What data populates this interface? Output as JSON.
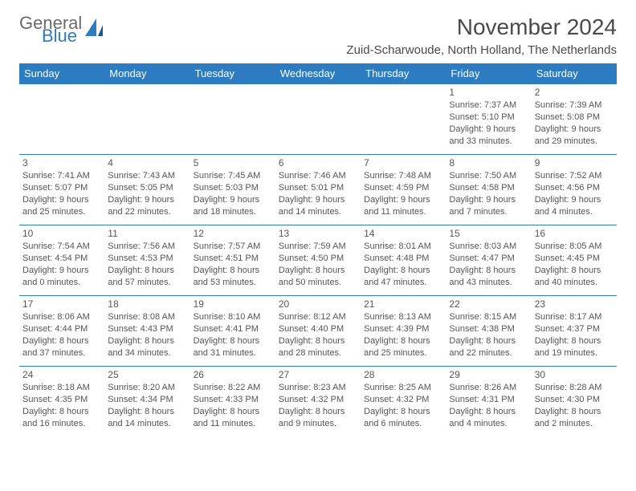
{
  "logo": {
    "word1": "General",
    "word2": "Blue"
  },
  "title": "November 2024",
  "location": "Zuid-Scharwoude, North Holland, The Netherlands",
  "colors": {
    "header_bg": "#2d7bc0",
    "header_text": "#ffffff",
    "border": "#2d7bc0",
    "body_text": "#555555",
    "title_text": "#4a4a4a",
    "logo_gray": "#6a6a6a",
    "logo_blue": "#2d7bc0",
    "background": "#ffffff"
  },
  "day_headers": [
    "Sunday",
    "Monday",
    "Tuesday",
    "Wednesday",
    "Thursday",
    "Friday",
    "Saturday"
  ],
  "weeks": [
    [
      null,
      null,
      null,
      null,
      null,
      {
        "n": "1",
        "sr": "Sunrise: 7:37 AM",
        "ss": "Sunset: 5:10 PM",
        "d1": "Daylight: 9 hours",
        "d2": "and 33 minutes."
      },
      {
        "n": "2",
        "sr": "Sunrise: 7:39 AM",
        "ss": "Sunset: 5:08 PM",
        "d1": "Daylight: 9 hours",
        "d2": "and 29 minutes."
      }
    ],
    [
      {
        "n": "3",
        "sr": "Sunrise: 7:41 AM",
        "ss": "Sunset: 5:07 PM",
        "d1": "Daylight: 9 hours",
        "d2": "and 25 minutes."
      },
      {
        "n": "4",
        "sr": "Sunrise: 7:43 AM",
        "ss": "Sunset: 5:05 PM",
        "d1": "Daylight: 9 hours",
        "d2": "and 22 minutes."
      },
      {
        "n": "5",
        "sr": "Sunrise: 7:45 AM",
        "ss": "Sunset: 5:03 PM",
        "d1": "Daylight: 9 hours",
        "d2": "and 18 minutes."
      },
      {
        "n": "6",
        "sr": "Sunrise: 7:46 AM",
        "ss": "Sunset: 5:01 PM",
        "d1": "Daylight: 9 hours",
        "d2": "and 14 minutes."
      },
      {
        "n": "7",
        "sr": "Sunrise: 7:48 AM",
        "ss": "Sunset: 4:59 PM",
        "d1": "Daylight: 9 hours",
        "d2": "and 11 minutes."
      },
      {
        "n": "8",
        "sr": "Sunrise: 7:50 AM",
        "ss": "Sunset: 4:58 PM",
        "d1": "Daylight: 9 hours",
        "d2": "and 7 minutes."
      },
      {
        "n": "9",
        "sr": "Sunrise: 7:52 AM",
        "ss": "Sunset: 4:56 PM",
        "d1": "Daylight: 9 hours",
        "d2": "and 4 minutes."
      }
    ],
    [
      {
        "n": "10",
        "sr": "Sunrise: 7:54 AM",
        "ss": "Sunset: 4:54 PM",
        "d1": "Daylight: 9 hours",
        "d2": "and 0 minutes."
      },
      {
        "n": "11",
        "sr": "Sunrise: 7:56 AM",
        "ss": "Sunset: 4:53 PM",
        "d1": "Daylight: 8 hours",
        "d2": "and 57 minutes."
      },
      {
        "n": "12",
        "sr": "Sunrise: 7:57 AM",
        "ss": "Sunset: 4:51 PM",
        "d1": "Daylight: 8 hours",
        "d2": "and 53 minutes."
      },
      {
        "n": "13",
        "sr": "Sunrise: 7:59 AM",
        "ss": "Sunset: 4:50 PM",
        "d1": "Daylight: 8 hours",
        "d2": "and 50 minutes."
      },
      {
        "n": "14",
        "sr": "Sunrise: 8:01 AM",
        "ss": "Sunset: 4:48 PM",
        "d1": "Daylight: 8 hours",
        "d2": "and 47 minutes."
      },
      {
        "n": "15",
        "sr": "Sunrise: 8:03 AM",
        "ss": "Sunset: 4:47 PM",
        "d1": "Daylight: 8 hours",
        "d2": "and 43 minutes."
      },
      {
        "n": "16",
        "sr": "Sunrise: 8:05 AM",
        "ss": "Sunset: 4:45 PM",
        "d1": "Daylight: 8 hours",
        "d2": "and 40 minutes."
      }
    ],
    [
      {
        "n": "17",
        "sr": "Sunrise: 8:06 AM",
        "ss": "Sunset: 4:44 PM",
        "d1": "Daylight: 8 hours",
        "d2": "and 37 minutes."
      },
      {
        "n": "18",
        "sr": "Sunrise: 8:08 AM",
        "ss": "Sunset: 4:43 PM",
        "d1": "Daylight: 8 hours",
        "d2": "and 34 minutes."
      },
      {
        "n": "19",
        "sr": "Sunrise: 8:10 AM",
        "ss": "Sunset: 4:41 PM",
        "d1": "Daylight: 8 hours",
        "d2": "and 31 minutes."
      },
      {
        "n": "20",
        "sr": "Sunrise: 8:12 AM",
        "ss": "Sunset: 4:40 PM",
        "d1": "Daylight: 8 hours",
        "d2": "and 28 minutes."
      },
      {
        "n": "21",
        "sr": "Sunrise: 8:13 AM",
        "ss": "Sunset: 4:39 PM",
        "d1": "Daylight: 8 hours",
        "d2": "and 25 minutes."
      },
      {
        "n": "22",
        "sr": "Sunrise: 8:15 AM",
        "ss": "Sunset: 4:38 PM",
        "d1": "Daylight: 8 hours",
        "d2": "and 22 minutes."
      },
      {
        "n": "23",
        "sr": "Sunrise: 8:17 AM",
        "ss": "Sunset: 4:37 PM",
        "d1": "Daylight: 8 hours",
        "d2": "and 19 minutes."
      }
    ],
    [
      {
        "n": "24",
        "sr": "Sunrise: 8:18 AM",
        "ss": "Sunset: 4:35 PM",
        "d1": "Daylight: 8 hours",
        "d2": "and 16 minutes."
      },
      {
        "n": "25",
        "sr": "Sunrise: 8:20 AM",
        "ss": "Sunset: 4:34 PM",
        "d1": "Daylight: 8 hours",
        "d2": "and 14 minutes."
      },
      {
        "n": "26",
        "sr": "Sunrise: 8:22 AM",
        "ss": "Sunset: 4:33 PM",
        "d1": "Daylight: 8 hours",
        "d2": "and 11 minutes."
      },
      {
        "n": "27",
        "sr": "Sunrise: 8:23 AM",
        "ss": "Sunset: 4:32 PM",
        "d1": "Daylight: 8 hours",
        "d2": "and 9 minutes."
      },
      {
        "n": "28",
        "sr": "Sunrise: 8:25 AM",
        "ss": "Sunset: 4:32 PM",
        "d1": "Daylight: 8 hours",
        "d2": "and 6 minutes."
      },
      {
        "n": "29",
        "sr": "Sunrise: 8:26 AM",
        "ss": "Sunset: 4:31 PM",
        "d1": "Daylight: 8 hours",
        "d2": "and 4 minutes."
      },
      {
        "n": "30",
        "sr": "Sunrise: 8:28 AM",
        "ss": "Sunset: 4:30 PM",
        "d1": "Daylight: 8 hours",
        "d2": "and 2 minutes."
      }
    ]
  ]
}
